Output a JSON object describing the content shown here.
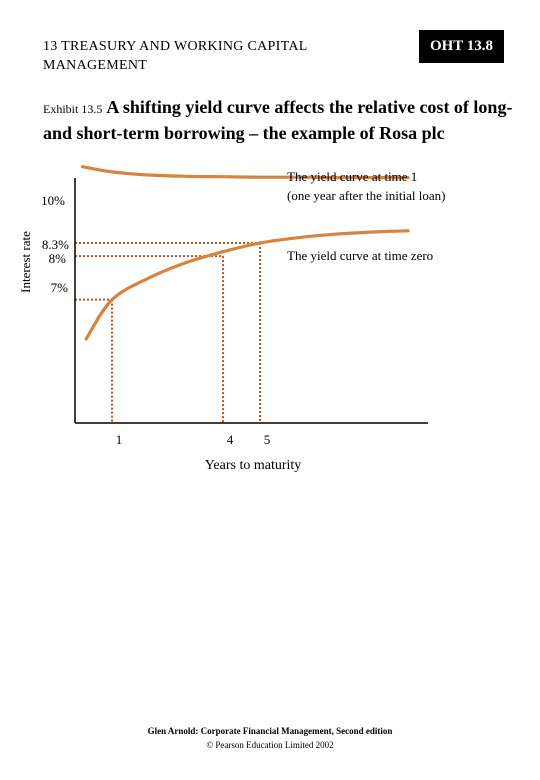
{
  "header": {
    "chapter_line1": "13 TREASURY AND WORKING CAPITAL",
    "chapter_line2": "MANAGEMENT",
    "badge": "OHT 13.8"
  },
  "exhibit": {
    "label": "Exhibit 13.5",
    "title": "A shifting yield curve affects the relative cost of long- and short-term borrowing – the example of Rosa plc"
  },
  "chart_data": {
    "type": "line",
    "xlabel": "Years to maturity",
    "ylabel": "Interest rate",
    "x_tick_labels": [
      "1",
      "4",
      "5"
    ],
    "y_tick_labels": [
      "10%",
      "8.3%",
      "8%",
      "7%"
    ],
    "series": [
      {
        "name": "The yield curve at time 1 (one year after the initial loan)",
        "name_line1": "The yield curve at time 1",
        "name_line2": "(one year after the initial loan)",
        "x": [
          0.2,
          1,
          2,
          3,
          4,
          5,
          6,
          7,
          8,
          9
        ],
        "y": [
          10.05,
          9.93,
          9.86,
          9.83,
          9.82,
          9.81,
          9.81,
          9.8,
          9.8,
          9.8
        ]
      },
      {
        "name": "The yield curve at time zero",
        "x": [
          0.3,
          1,
          2,
          3,
          4,
          5,
          6,
          7,
          8,
          9
        ],
        "y": [
          6.1,
          7,
          7.5,
          7.85,
          8.1,
          8.3,
          8.42,
          8.5,
          8.55,
          8.58
        ]
      }
    ],
    "reference_lines": [
      {
        "rate": 8.3,
        "maturity": 5
      },
      {
        "rate": 8.0,
        "maturity": 4
      },
      {
        "rate": 7.0,
        "maturity": 1
      }
    ],
    "curve_color": "#d9843e",
    "reference_color": "#c4541d"
  },
  "footer": {
    "line1": "Glen Arnold: Corporate Financial Management, Second edition",
    "line2": "© Pearson Education Limited 2002"
  }
}
